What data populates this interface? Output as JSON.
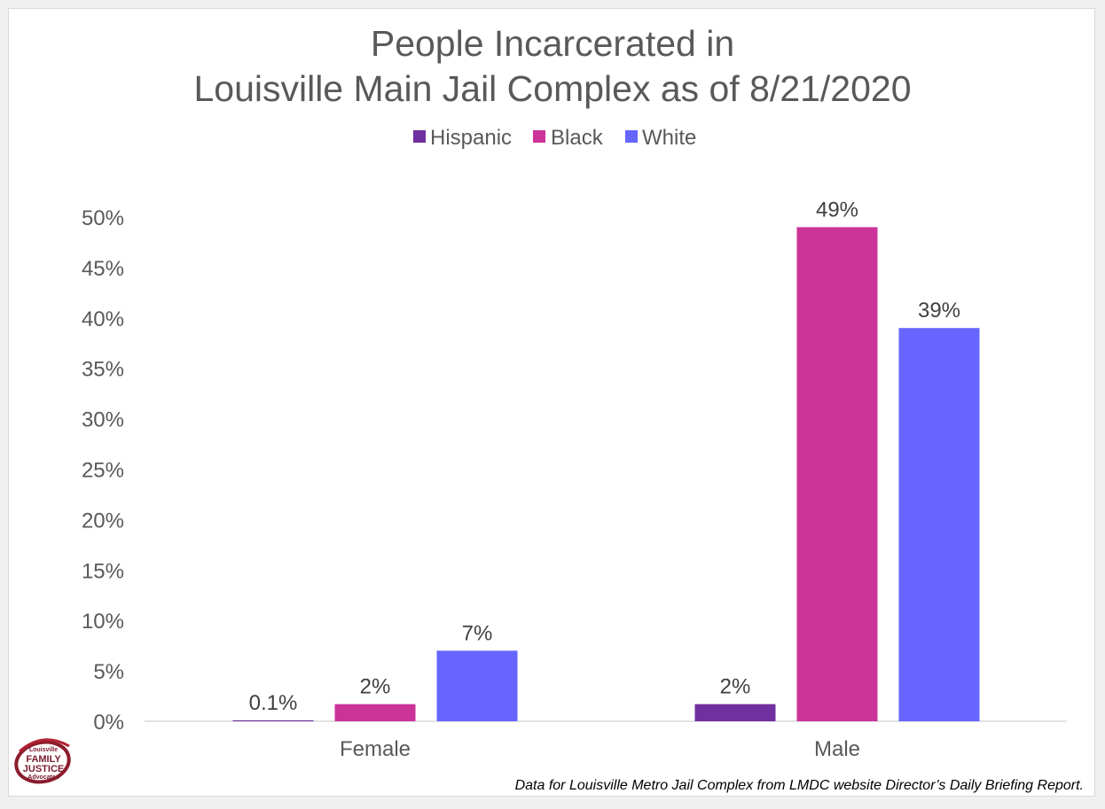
{
  "chart_data": {
    "type": "bar",
    "title_lines": [
      "People Incarcerated in",
      "Louisville Main Jail Complex as of 8/21/2020"
    ],
    "categories": [
      "Female",
      "Male"
    ],
    "series": [
      {
        "name": "Hispanic",
        "color": "#7030a0",
        "values": [
          0.1,
          1.7
        ],
        "labels": [
          "0.1%",
          "2%"
        ]
      },
      {
        "name": "Black",
        "color": "#cc3399",
        "values": [
          1.7,
          49
        ],
        "labels": [
          "2%",
          "49%"
        ]
      },
      {
        "name": "White",
        "color": "#6666ff",
        "values": [
          7,
          39
        ],
        "labels": [
          "7%",
          "39%"
        ]
      }
    ],
    "ylim": [
      0,
      50
    ],
    "yticks": [
      "0%",
      "5%",
      "10%",
      "15%",
      "20%",
      "25%",
      "30%",
      "35%",
      "40%",
      "45%",
      "50%"
    ],
    "legend_position": "top-center",
    "grid": false
  },
  "footnote": "Data for Louisville Metro Jail Complex from LMDC website Director’s Daily Briefing Report.",
  "logo": {
    "line1": "Louisville",
    "line2": "FAMILY",
    "line3": "JUSTICE",
    "line4": "Advocates"
  }
}
